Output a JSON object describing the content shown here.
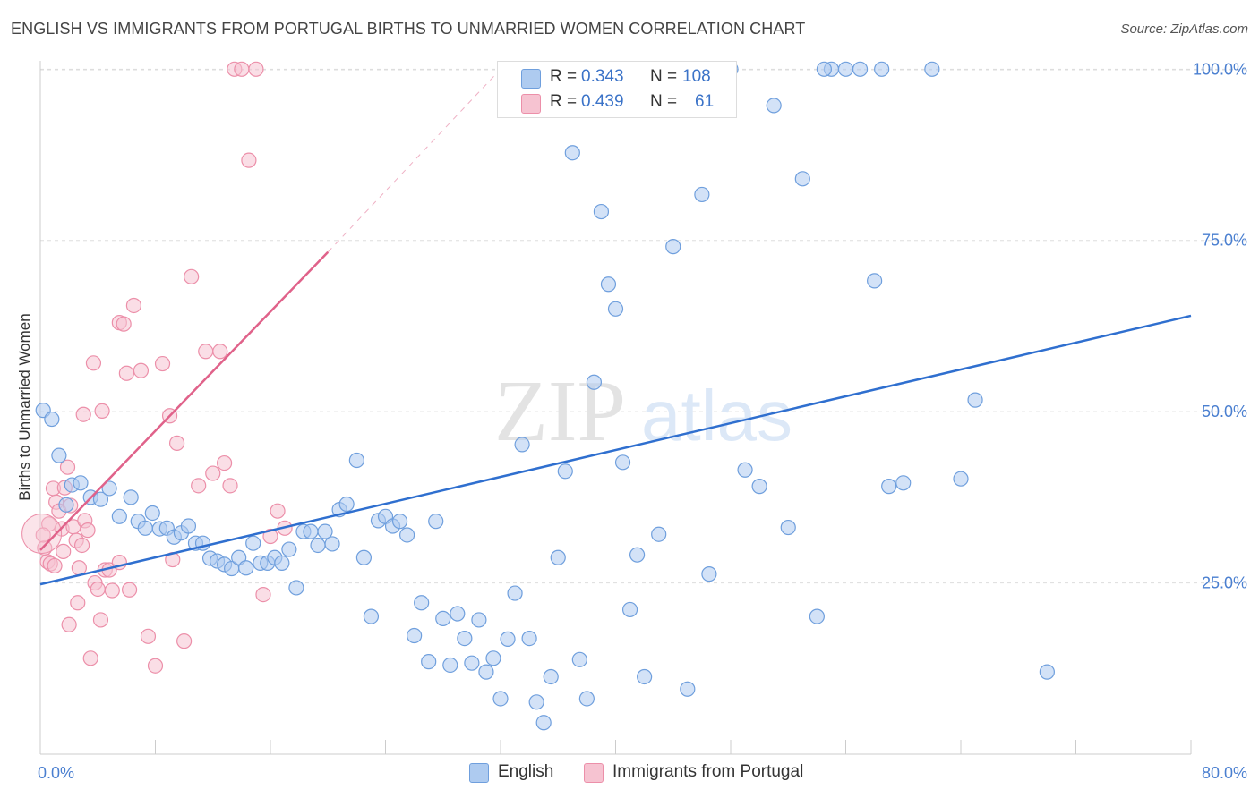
{
  "title": "ENGLISH VS IMMIGRANTS FROM PORTUGAL BIRTHS TO UNMARRIED WOMEN CORRELATION CHART",
  "source": "Source: ZipAtlas.com",
  "watermark": {
    "zip": "ZIP",
    "atlas": "atlas"
  },
  "colors": {
    "english_fill": "#aecbf0",
    "english_stroke": "#6f9fdd",
    "english_line": "#2f6fcf",
    "portugal_fill": "#f6c3d1",
    "portugal_stroke": "#ec8fa9",
    "portugal_line": "#e0628a",
    "axis_text": "#4a7fd0",
    "grid": "#dddddd"
  },
  "legend": {
    "rows": [
      {
        "r_label": "R =",
        "r_value": "0.343",
        "n_label": "N =",
        "n_value": "108"
      },
      {
        "r_label": "R =",
        "r_value": "0.439",
        "n_label": "N =",
        "n_value": "61"
      }
    ]
  },
  "bottom_legend": {
    "english": "English",
    "portugal": "Immigrants from Portugal"
  },
  "chart_data": {
    "type": "scatter",
    "title": "ENGLISH VS IMMIGRANTS FROM PORTUGAL BIRTHS TO UNMARRIED WOMEN CORRELATION CHART",
    "xlabel": "",
    "ylabel": "Births to Unmarried Women",
    "xlim": [
      0,
      80
    ],
    "ylim": [
      0,
      102
    ],
    "x_tick_labels": [
      "0.0%",
      "80.0%"
    ],
    "y_ticks": [
      25,
      50,
      75,
      100
    ],
    "y_tick_labels": [
      "25.0%",
      "50.0%",
      "75.0%",
      "100.0%"
    ],
    "grid": true,
    "series": [
      {
        "name": "English",
        "r": 0.343,
        "n": 108,
        "trend": {
          "x": [
            0,
            80
          ],
          "y": [
            24.8,
            64.0
          ],
          "dashed_extension": false
        },
        "points": [
          [
            0.2,
            50.2
          ],
          [
            0.8,
            48.9
          ],
          [
            1.3,
            43.6
          ],
          [
            1.8,
            36.4
          ],
          [
            2.2,
            39.3
          ],
          [
            2.8,
            39.6
          ],
          [
            3.5,
            37.5
          ],
          [
            4.2,
            37.2
          ],
          [
            4.8,
            38.8
          ],
          [
            5.5,
            34.7
          ],
          [
            6.3,
            37.5
          ],
          [
            6.8,
            34.0
          ],
          [
            7.3,
            33.0
          ],
          [
            7.8,
            35.2
          ],
          [
            8.3,
            32.9
          ],
          [
            8.8,
            33.0
          ],
          [
            9.3,
            31.7
          ],
          [
            9.8,
            32.3
          ],
          [
            10.3,
            33.3
          ],
          [
            10.8,
            30.8
          ],
          [
            11.3,
            30.8
          ],
          [
            11.8,
            28.6
          ],
          [
            12.3,
            28.2
          ],
          [
            12.8,
            27.7
          ],
          [
            13.3,
            27.1
          ],
          [
            13.8,
            28.7
          ],
          [
            14.3,
            27.2
          ],
          [
            14.8,
            30.8
          ],
          [
            15.3,
            27.9
          ],
          [
            15.8,
            27.9
          ],
          [
            16.3,
            28.7
          ],
          [
            16.8,
            27.9
          ],
          [
            17.3,
            29.9
          ],
          [
            17.8,
            24.3
          ],
          [
            18.3,
            32.5
          ],
          [
            18.8,
            32.5
          ],
          [
            19.3,
            30.5
          ],
          [
            19.8,
            32.5
          ],
          [
            20.3,
            30.7
          ],
          [
            20.8,
            35.7
          ],
          [
            21.3,
            36.5
          ],
          [
            22.0,
            42.9
          ],
          [
            22.5,
            28.7
          ],
          [
            23.0,
            20.1
          ],
          [
            23.5,
            34.1
          ],
          [
            24.0,
            34.7
          ],
          [
            24.5,
            33.3
          ],
          [
            25.0,
            34.0
          ],
          [
            25.5,
            32.0
          ],
          [
            26.0,
            17.3
          ],
          [
            26.5,
            22.1
          ],
          [
            27.0,
            13.5
          ],
          [
            27.5,
            34.0
          ],
          [
            28.0,
            19.8
          ],
          [
            28.5,
            13.0
          ],
          [
            29.0,
            20.5
          ],
          [
            29.5,
            16.9
          ],
          [
            30.0,
            13.3
          ],
          [
            30.5,
            19.6
          ],
          [
            31.0,
            12.0
          ],
          [
            31.5,
            14.0
          ],
          [
            32.0,
            8.1
          ],
          [
            32.5,
            16.8
          ],
          [
            33.0,
            23.5
          ],
          [
            33.5,
            45.2
          ],
          [
            34.0,
            16.9
          ],
          [
            34.5,
            7.6
          ],
          [
            35.0,
            4.6
          ],
          [
            35.5,
            11.3
          ],
          [
            36.0,
            28.7
          ],
          [
            36.5,
            41.3
          ],
          [
            37.0,
            87.8
          ],
          [
            37.5,
            13.8
          ],
          [
            38.0,
            8.1
          ],
          [
            38.5,
            54.3
          ],
          [
            39.0,
            79.2
          ],
          [
            39.5,
            68.6
          ],
          [
            40.0,
            65.0
          ],
          [
            40.5,
            42.6
          ],
          [
            41.0,
            21.1
          ],
          [
            41.5,
            29.1
          ],
          [
            42.0,
            11.3
          ],
          [
            43.0,
            32.1
          ],
          [
            44.0,
            74.1
          ],
          [
            45.0,
            9.5
          ],
          [
            46.0,
            81.7
          ],
          [
            46.5,
            26.3
          ],
          [
            47.0,
            100.0
          ],
          [
            48.0,
            100.0
          ],
          [
            49.0,
            41.5
          ],
          [
            50.0,
            39.1
          ],
          [
            51.0,
            94.7
          ],
          [
            52.0,
            33.1
          ],
          [
            53.0,
            84.0
          ],
          [
            54.0,
            20.1
          ],
          [
            55.0,
            100.0
          ],
          [
            56.0,
            100.0
          ],
          [
            57.0,
            100.0
          ],
          [
            58.0,
            69.1
          ],
          [
            59.0,
            39.1
          ],
          [
            60.0,
            39.6
          ],
          [
            62.0,
            100.0
          ],
          [
            64.0,
            40.2
          ],
          [
            65.0,
            51.7
          ],
          [
            70.0,
            12.0
          ],
          [
            47.5,
            100.0
          ],
          [
            54.5,
            100.0
          ],
          [
            58.5,
            100.0
          ]
        ]
      },
      {
        "name": "Immigrants from Portugal",
        "r": 0.439,
        "n": 61,
        "trend": {
          "x": [
            0,
            20.0
          ],
          "y": [
            29.8,
            73.3
          ],
          "dashed_extension": true,
          "dashed_to": [
            32.0,
            100.0
          ]
        },
        "points": [
          [
            0.3,
            30.1
          ],
          [
            0.5,
            28.1
          ],
          [
            0.7,
            27.8
          ],
          [
            0.9,
            38.8
          ],
          [
            1.1,
            36.8
          ],
          [
            1.3,
            35.5
          ],
          [
            1.5,
            32.9
          ],
          [
            1.7,
            38.9
          ],
          [
            1.9,
            41.9
          ],
          [
            2.1,
            36.3
          ],
          [
            2.3,
            33.2
          ],
          [
            2.5,
            31.2
          ],
          [
            2.7,
            27.2
          ],
          [
            2.9,
            30.5
          ],
          [
            3.1,
            34.1
          ],
          [
            3.3,
            32.7
          ],
          [
            3.5,
            14.0
          ],
          [
            3.8,
            25.0
          ],
          [
            4.0,
            24.1
          ],
          [
            4.2,
            19.6
          ],
          [
            4.5,
            26.9
          ],
          [
            4.8,
            26.9
          ],
          [
            5.0,
            23.9
          ],
          [
            5.5,
            63.0
          ],
          [
            6.0,
            55.6
          ],
          [
            6.5,
            65.5
          ],
          [
            7.0,
            56.0
          ],
          [
            7.5,
            17.2
          ],
          [
            8.0,
            12.9
          ],
          [
            8.5,
            57.0
          ],
          [
            9.0,
            49.4
          ],
          [
            9.5,
            45.4
          ],
          [
            10.0,
            16.5
          ],
          [
            10.5,
            69.7
          ],
          [
            11.0,
            39.2
          ],
          [
            11.5,
            58.8
          ],
          [
            12.0,
            41.0
          ],
          [
            12.5,
            58.8
          ],
          [
            12.8,
            42.5
          ],
          [
            13.2,
            39.2
          ],
          [
            13.5,
            100.0
          ],
          [
            14.0,
            100.0
          ],
          [
            14.5,
            86.7
          ],
          [
            15.0,
            100.0
          ],
          [
            15.5,
            23.3
          ],
          [
            16.0,
            31.8
          ],
          [
            16.5,
            35.5
          ],
          [
            17.0,
            33.0
          ],
          [
            5.5,
            28.0
          ],
          [
            3.0,
            49.6
          ],
          [
            2.0,
            18.9
          ],
          [
            4.3,
            50.1
          ],
          [
            1.6,
            29.6
          ],
          [
            2.6,
            22.1
          ],
          [
            6.2,
            24.0
          ],
          [
            0.6,
            33.6
          ],
          [
            3.7,
            57.1
          ],
          [
            5.8,
            62.8
          ],
          [
            9.2,
            28.4
          ],
          [
            1.0,
            27.5
          ],
          [
            0.2,
            32.0
          ]
        ]
      }
    ]
  }
}
